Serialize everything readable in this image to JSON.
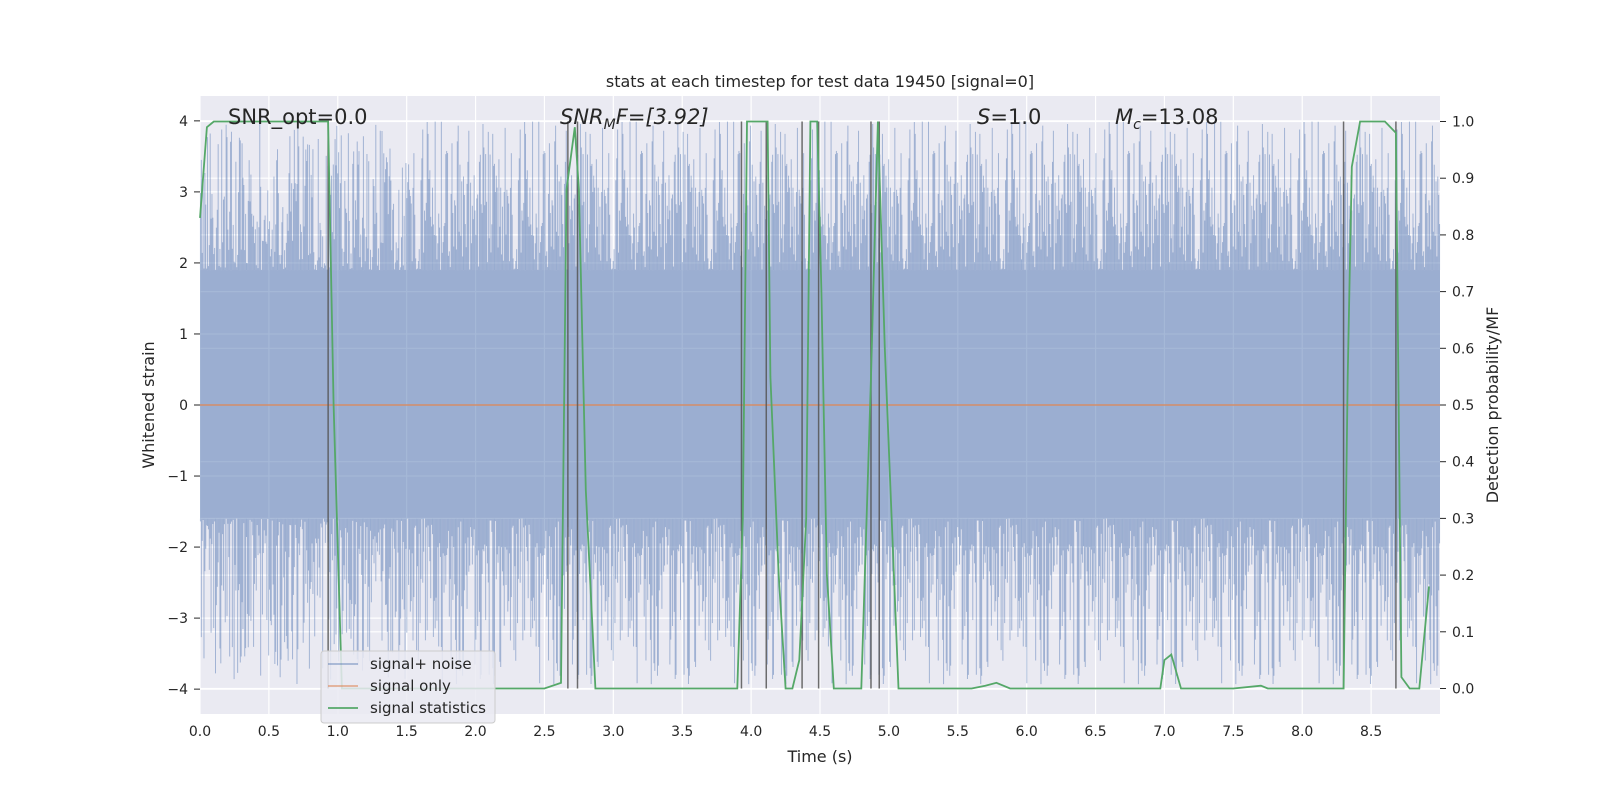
{
  "chart_data": {
    "type": "line",
    "title": "stats at each timestep for test data 19450 [signal=0]",
    "xlabel": "Time (s)",
    "ylabel": "Whitened strain",
    "y2label": "Detection probability/MF",
    "xlim": [
      0.0,
      9.0
    ],
    "ylim": [
      -4.35,
      4.35
    ],
    "y2lim": [
      -0.045,
      1.045
    ],
    "grid": true,
    "legend_position": "lower-left",
    "x_ticks": [
      "0.0",
      "0.5",
      "1.0",
      "1.5",
      "2.0",
      "2.5",
      "3.0",
      "3.5",
      "4.0",
      "4.5",
      "5.0",
      "5.5",
      "6.0",
      "6.5",
      "7.0",
      "7.5",
      "8.0",
      "8.5"
    ],
    "y_ticks": [
      "−4",
      "−3",
      "−2",
      "−1",
      "0",
      "1",
      "2",
      "3",
      "4"
    ],
    "y2_ticks": [
      "0.0",
      "0.1",
      "0.2",
      "0.3",
      "0.4",
      "0.5",
      "0.6",
      "0.7",
      "0.8",
      "0.9",
      "1.0"
    ],
    "annotations": {
      "snr_opt": "SNR_opt=0.0",
      "snr_mf_main": "SNR",
      "snr_mf_sub": "M",
      "snr_mf_rest": "F=[3.92]",
      "s_main": "S",
      "s_rest": "=1.0",
      "mc_main": "M",
      "mc_sub": "c",
      "mc_rest": "=13.08"
    },
    "colors": {
      "background": "#eaeaf2",
      "grid": "#ffffff",
      "signal_noise": "#4c72b0",
      "signal_only": "#dd8452",
      "signal_statistics": "#55a868",
      "vlines": "#555555"
    },
    "series": [
      {
        "name": "signal+ noise",
        "kind": "noise_band",
        "typical_range": [
          -1.6,
          1.9
        ],
        "extreme_range": [
          -3.95,
          4.0
        ]
      },
      {
        "name": "signal only",
        "kind": "line",
        "x": [
          0.0,
          9.0
        ],
        "y": [
          0.0,
          0.0
        ]
      },
      {
        "name": "signal statistics",
        "kind": "line",
        "axis": "right",
        "x": [
          0.0,
          0.05,
          0.1,
          0.2,
          0.5,
          0.9,
          0.93,
          0.97,
          1.03,
          1.05,
          2.5,
          2.62,
          2.66,
          2.72,
          2.75,
          2.8,
          2.87,
          2.92,
          3.5,
          3.9,
          3.94,
          3.97,
          4.12,
          4.14,
          4.2,
          4.25,
          4.3,
          4.35,
          4.4,
          4.43,
          4.48,
          4.51,
          4.55,
          4.6,
          4.63,
          4.7,
          4.8,
          4.87,
          4.92,
          4.97,
          5.07,
          5.1,
          5.6,
          5.7,
          5.78,
          5.88,
          6.0,
          6.5,
          6.97,
          7.0,
          7.05,
          7.12,
          7.15,
          7.3,
          7.5,
          7.7,
          7.75,
          7.8,
          8.1,
          8.3,
          8.33,
          8.36,
          8.42,
          8.5,
          8.6,
          8.68,
          8.72,
          8.78,
          8.85,
          8.92
        ],
        "y": [
          0.83,
          0.99,
          1.0,
          1.0,
          1.0,
          1.0,
          1.0,
          0.5,
          0.0,
          0.0,
          0.0,
          0.01,
          0.88,
          0.99,
          0.88,
          0.35,
          0.0,
          0.0,
          0.0,
          0.0,
          0.3,
          1.0,
          1.0,
          0.55,
          0.2,
          0.0,
          0.0,
          0.05,
          0.3,
          1.0,
          1.0,
          0.7,
          0.2,
          0.0,
          0.0,
          0.0,
          0.0,
          0.55,
          1.0,
          0.6,
          0.0,
          0.0,
          0.0,
          0.005,
          0.01,
          0.0,
          0.0,
          0.0,
          0.0,
          0.05,
          0.06,
          0.0,
          0.0,
          0.0,
          0.0,
          0.005,
          0.0,
          0.0,
          0.0,
          0.0,
          0.55,
          0.92,
          1.0,
          1.0,
          1.0,
          0.98,
          0.02,
          0.0,
          0.0,
          0.18
        ]
      }
    ],
    "vertical_markers_x": [
      0.93,
      2.67,
      2.74,
      3.93,
      4.11,
      4.37,
      4.49,
      4.87,
      4.93,
      8.3,
      8.68
    ]
  }
}
